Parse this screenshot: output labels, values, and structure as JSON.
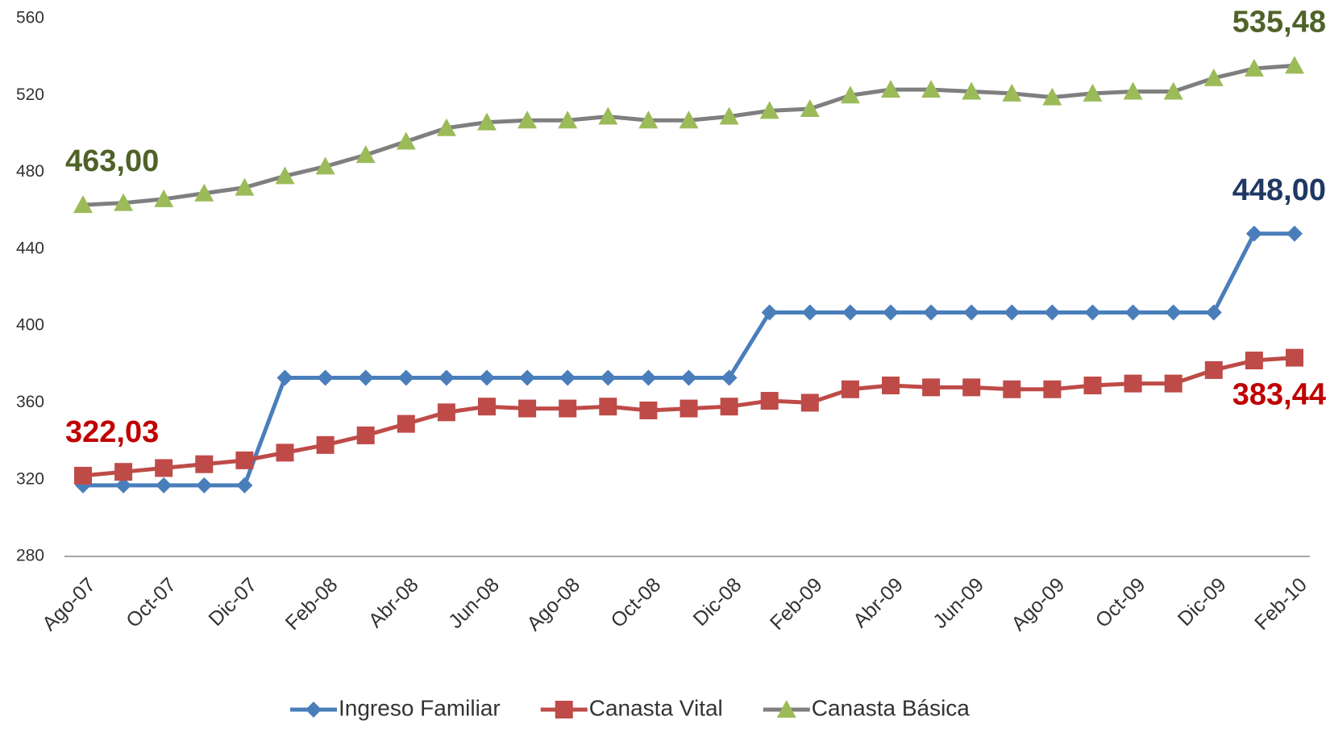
{
  "chart_data": {
    "type": "line",
    "categories": [
      "Ago-07",
      null,
      "Oct-07",
      null,
      "Dic-07",
      null,
      "Feb-08",
      null,
      "Abr-08",
      null,
      "Jun-08",
      null,
      "Ago-08",
      null,
      "Oct-08",
      null,
      "Dic-08",
      null,
      "Feb-09",
      null,
      "Abr-09",
      null,
      "Jun-09",
      null,
      "Ago-09",
      null,
      "Oct-09",
      null,
      "Dic-09",
      null,
      "Feb-10"
    ],
    "series": [
      {
        "name": "Ingreso Familiar",
        "color": "#4a7ebb",
        "marker_color": "#4a7ebb",
        "marker": "diamond",
        "label_color": "#1f3864",
        "values": [
          317,
          317,
          317,
          317,
          317,
          373,
          373,
          373,
          373,
          373,
          373,
          373,
          373,
          373,
          373,
          373,
          373,
          407,
          407,
          407,
          407,
          407,
          407,
          407,
          407,
          407,
          407,
          407,
          407,
          448,
          448
        ],
        "value_labels": [
          null,
          null,
          null,
          null,
          null,
          null,
          null,
          null,
          null,
          null,
          null,
          null,
          null,
          null,
          null,
          null,
          null,
          null,
          null,
          null,
          null,
          null,
          null,
          null,
          null,
          null,
          null,
          null,
          null,
          null,
          "448,00"
        ]
      },
      {
        "name": "Canasta Vital",
        "color": "#be4b48",
        "marker_color": "#be4b48",
        "marker": "square",
        "label_color": "#c00000",
        "values": [
          322.03,
          324,
          326,
          328,
          330,
          334,
          338,
          343,
          349,
          355,
          358,
          357,
          357,
          358,
          356,
          357,
          358,
          361,
          360,
          367,
          369,
          368,
          368,
          367,
          367,
          369,
          370,
          370,
          377,
          382,
          383.44
        ],
        "value_labels": [
          "322,03",
          null,
          null,
          null,
          null,
          null,
          null,
          null,
          null,
          null,
          null,
          null,
          null,
          null,
          null,
          null,
          null,
          null,
          null,
          null,
          null,
          null,
          null,
          null,
          null,
          null,
          null,
          null,
          null,
          null,
          "383,44"
        ]
      },
      {
        "name": "Canasta Básica",
        "color": "#7f7f7f",
        "marker_color": "#9bbb59",
        "marker": "triangle",
        "label_color": "#4f6228",
        "values": [
          463,
          464,
          466,
          469,
          472,
          478,
          483,
          489,
          496,
          503,
          506,
          507,
          507,
          509,
          507,
          507,
          509,
          512,
          513,
          520,
          523,
          523,
          522,
          521,
          519,
          521,
          522,
          522,
          529,
          534,
          535.48
        ],
        "value_labels": [
          "463,00",
          null,
          null,
          null,
          null,
          null,
          null,
          null,
          null,
          null,
          null,
          null,
          null,
          null,
          null,
          null,
          null,
          null,
          null,
          null,
          null,
          null,
          null,
          null,
          null,
          null,
          null,
          null,
          null,
          null,
          "535,48"
        ]
      }
    ],
    "ylim": [
      280,
      560
    ],
    "yticks": [
      280,
      320,
      360,
      400,
      440,
      480,
      520,
      560
    ],
    "grid": false,
    "legend": "bottom"
  }
}
